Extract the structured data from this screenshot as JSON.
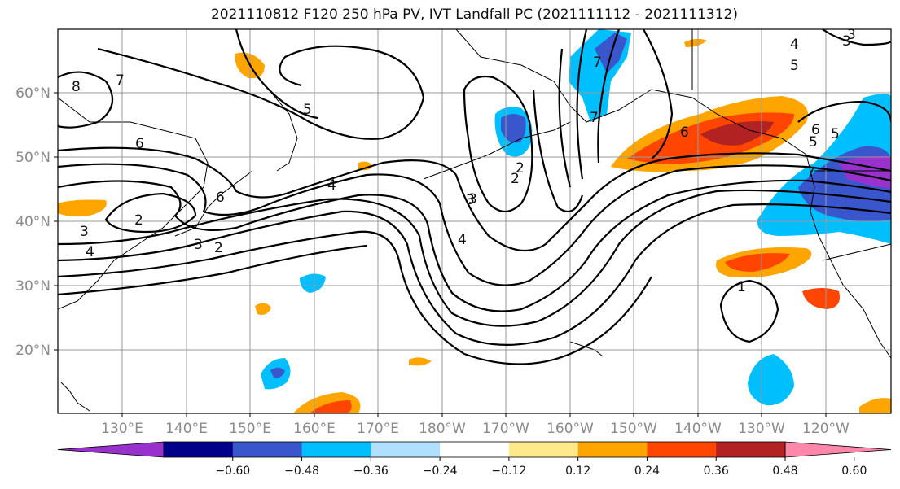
{
  "title": "2021110812 F120 250 hPa PV, IVT Landfall PC (2021111112 - 2021111312)",
  "lat_labels": [
    "60°N",
    "50°N",
    "40°N",
    "30°N",
    "20°N"
  ],
  "lon_labels": [
    "130°E",
    "140°E",
    "150°E",
    "160°E",
    "170°E",
    "180°W",
    "170°W",
    "160°W",
    "150°W",
    "140°W",
    "130°W",
    "120°W"
  ],
  "colorbar": {
    "colors": [
      "#9932CC",
      "#00008B",
      "#3A56CC",
      "#00BFFF",
      "#B0E0FF",
      "#FFFFFF",
      "#FFE98A",
      "#FFA500",
      "#FF4500",
      "#B22222",
      "#FF88AA"
    ],
    "ticks": [
      "−0.60",
      "−0.48",
      "−0.36",
      "−0.24",
      "−0.12",
      "0.12",
      "0.24",
      "0.36",
      "0.48",
      "0.60"
    ]
  },
  "contour_labels": [
    "7",
    "8",
    "6",
    "5",
    "6",
    "4",
    "2",
    "3",
    "2",
    "3",
    "4",
    "3",
    "2",
    "2",
    "3",
    "4",
    "7",
    "7",
    "6",
    "5",
    "6",
    "7",
    "5",
    "4",
    "3",
    "1",
    "5",
    "3"
  ]
}
